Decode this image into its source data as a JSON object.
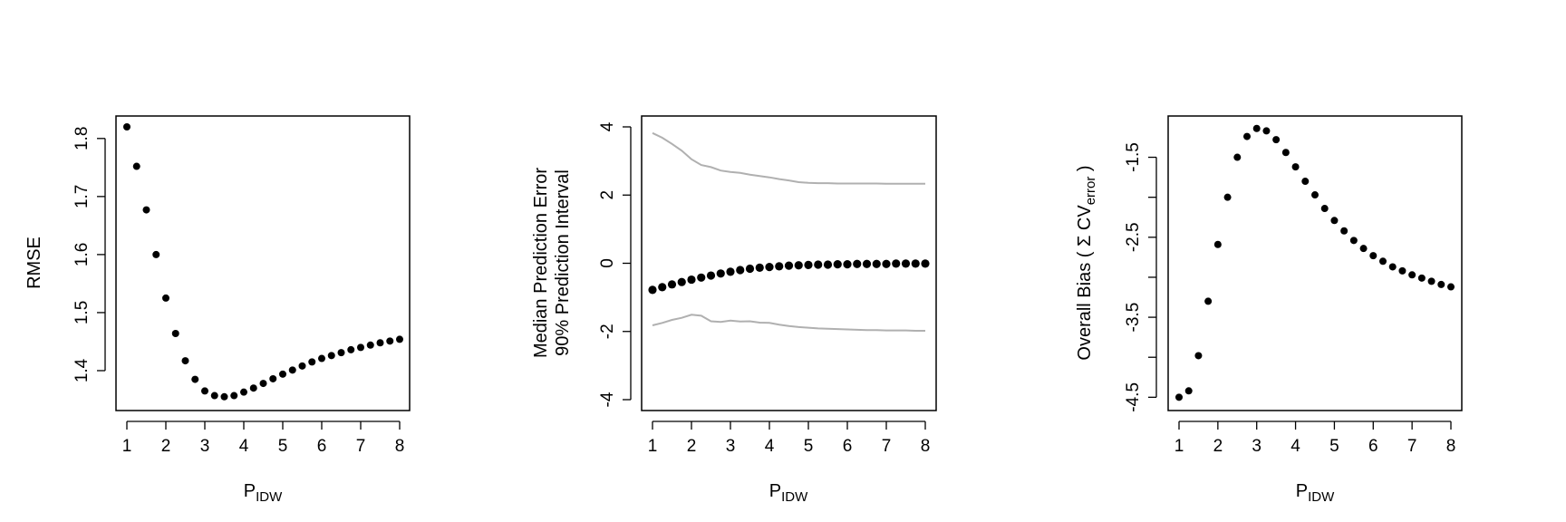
{
  "colors": {
    "points": "#000000",
    "interval": "#b0b0b0",
    "frame": "#000000"
  },
  "chart_data": [
    {
      "type": "scatter",
      "xlabel_main": "P",
      "xlabel_sub": "IDW",
      "ylabel": "RMSE",
      "xlim": [
        1,
        8
      ],
      "ylim": [
        1.35,
        1.82
      ],
      "xticks": [
        "1",
        "2",
        "3",
        "4",
        "5",
        "6",
        "7",
        "8"
      ],
      "yticks": [
        "1.4",
        "1.5",
        "1.6",
        "1.7",
        "1.8"
      ],
      "grid": false,
      "series": [
        {
          "x": [
            1.0,
            1.25,
            1.5,
            1.75,
            2.0,
            2.25,
            2.5,
            2.75,
            3.0,
            3.25,
            3.5,
            3.75,
            4.0,
            4.25,
            4.5,
            4.75,
            5.0,
            5.25,
            5.5,
            5.75,
            6.0,
            6.25,
            6.5,
            6.75,
            7.0,
            7.25,
            7.5,
            7.75,
            8.0
          ],
          "y": [
            1.82,
            1.752,
            1.677,
            1.6,
            1.525,
            1.464,
            1.417,
            1.385,
            1.365,
            1.357,
            1.355,
            1.357,
            1.363,
            1.37,
            1.378,
            1.386,
            1.394,
            1.401,
            1.408,
            1.415,
            1.421,
            1.426,
            1.431,
            1.436,
            1.44,
            1.444,
            1.448,
            1.451,
            1.454
          ]
        }
      ]
    },
    {
      "type": "line",
      "xlabel_main": "P",
      "xlabel_sub": "IDW",
      "ylabel_line1": "Median Prediction Error",
      "ylabel_line2": "90% Prediction Interval",
      "xlim": [
        1,
        8
      ],
      "ylim": [
        -4,
        4
      ],
      "xticks": [
        "1",
        "2",
        "3",
        "4",
        "5",
        "6",
        "7",
        "8"
      ],
      "yticks": [
        "-4",
        "-2",
        "0",
        "2",
        "4"
      ],
      "grid": false,
      "x": [
        1.0,
        1.25,
        1.5,
        1.75,
        2.0,
        2.25,
        2.5,
        2.75,
        3.0,
        3.25,
        3.5,
        3.75,
        4.0,
        4.25,
        4.5,
        4.75,
        5.0,
        5.25,
        5.5,
        5.75,
        6.0,
        6.25,
        6.5,
        6.75,
        7.0,
        7.25,
        7.5,
        7.75,
        8.0
      ],
      "series": [
        {
          "role": "median",
          "style": "points",
          "values": [
            -0.78,
            -0.7,
            -0.62,
            -0.55,
            -0.48,
            -0.42,
            -0.36,
            -0.3,
            -0.25,
            -0.2,
            -0.16,
            -0.13,
            -0.11,
            -0.09,
            -0.07,
            -0.06,
            -0.05,
            -0.04,
            -0.04,
            -0.03,
            -0.03,
            -0.02,
            -0.02,
            -0.02,
            -0.02,
            -0.01,
            -0.01,
            -0.01,
            -0.01
          ]
        },
        {
          "role": "upper",
          "style": "line",
          "values": [
            3.82,
            3.68,
            3.5,
            3.3,
            3.05,
            2.88,
            2.82,
            2.72,
            2.68,
            2.65,
            2.6,
            2.56,
            2.52,
            2.47,
            2.43,
            2.38,
            2.36,
            2.35,
            2.35,
            2.34,
            2.34,
            2.34,
            2.34,
            2.34,
            2.33,
            2.33,
            2.33,
            2.33,
            2.33
          ]
        },
        {
          "role": "lower",
          "style": "line",
          "values": [
            -1.82,
            -1.75,
            -1.66,
            -1.6,
            -1.51,
            -1.54,
            -1.7,
            -1.72,
            -1.68,
            -1.71,
            -1.7,
            -1.74,
            -1.75,
            -1.8,
            -1.84,
            -1.87,
            -1.89,
            -1.91,
            -1.92,
            -1.93,
            -1.94,
            -1.95,
            -1.96,
            -1.96,
            -1.97,
            -1.97,
            -1.97,
            -1.98,
            -1.98
          ]
        }
      ]
    },
    {
      "type": "scatter",
      "xlabel_main": "P",
      "xlabel_sub": "IDW",
      "ylabel_pre": "Overall Bias ( Σ CV",
      "ylabel_sub": "error",
      "ylabel_post": " )",
      "xlim": [
        1,
        8
      ],
      "ylim": [
        -4.53,
        -1.12
      ],
      "xticks": [
        "1",
        "2",
        "3",
        "4",
        "5",
        "6",
        "7",
        "8"
      ],
      "yticks": [
        "-4.5",
        "-3.5",
        "-2.5",
        "-1.5"
      ],
      "ytick_values": [
        -4.5,
        -4.0,
        -3.5,
        -3.0,
        -2.5,
        -2.0,
        -1.5
      ],
      "grid": false,
      "series": [
        {
          "x": [
            1.0,
            1.25,
            1.5,
            1.75,
            2.0,
            2.25,
            2.5,
            2.75,
            3.0,
            3.25,
            3.5,
            3.75,
            4.0,
            4.25,
            4.5,
            4.75,
            5.0,
            5.25,
            5.5,
            5.75,
            6.0,
            6.25,
            6.5,
            6.75,
            7.0,
            7.25,
            7.5,
            7.75,
            8.0
          ],
          "y": [
            -4.5,
            -4.42,
            -3.98,
            -3.3,
            -2.59,
            -2.0,
            -1.5,
            -1.24,
            -1.14,
            -1.17,
            -1.28,
            -1.44,
            -1.62,
            -1.8,
            -1.97,
            -2.14,
            -2.29,
            -2.42,
            -2.54,
            -2.64,
            -2.73,
            -2.8,
            -2.87,
            -2.92,
            -2.97,
            -3.01,
            -3.05,
            -3.09,
            -3.12
          ]
        }
      ]
    }
  ]
}
